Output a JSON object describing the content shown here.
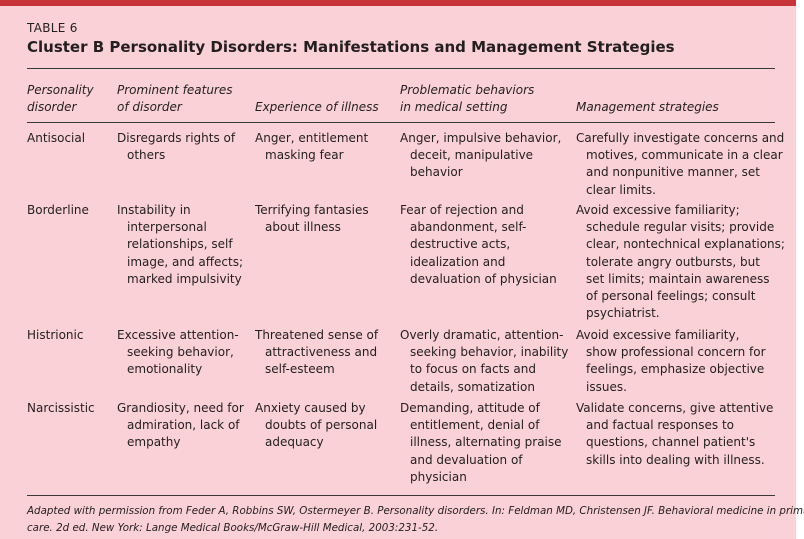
{
  "table": {
    "label": "TABLE 6",
    "title": "Cluster B Personality Disorders: Manifestations and Management Strategies",
    "headers": [
      [
        "Personality",
        "disorder"
      ],
      [
        "Prominent features",
        "of disorder"
      ],
      [
        "Experience of illness"
      ],
      [
        "Problematic behaviors",
        "in medical setting"
      ],
      [
        "Management strategies"
      ]
    ],
    "rows": [
      {
        "disorder": [
          "Antisocial"
        ],
        "features": [
          "Disregards rights of",
          "others"
        ],
        "experience": [
          "Anger, entitlement",
          "masking fear"
        ],
        "behaviors": [
          "Anger, impulsive behavior,",
          "deceit, manipulative",
          "behavior"
        ],
        "management": [
          "Carefully investigate concerns and",
          "motives, communicate in a clear",
          "and nonpunitive manner, set",
          "clear limits."
        ]
      },
      {
        "disorder": [
          "Borderline"
        ],
        "features": [
          "Instability in",
          "interpersonal",
          "relationships, self",
          "image, and affects;",
          "marked impulsivity"
        ],
        "experience": [
          "Terrifying fantasies",
          "about illness"
        ],
        "behaviors": [
          "Fear of rejection and",
          "abandonment, self-",
          "destructive acts,",
          "idealization and",
          "devaluation of physician"
        ],
        "management": [
          "Avoid excessive familiarity;",
          "schedule regular visits; provide",
          "clear, nontechnical explanations;",
          "tolerate angry outbursts, but",
          "set limits; maintain awareness",
          "of personal feelings; consult",
          "psychiatrist."
        ]
      },
      {
        "disorder": [
          "Histrionic"
        ],
        "features": [
          "Excessive attention-",
          "seeking behavior,",
          "emotionality"
        ],
        "experience": [
          "Threatened sense of",
          "attractiveness and",
          "self-esteem"
        ],
        "behaviors": [
          "Overly dramatic, attention-",
          "seeking behavior, inability",
          "to focus on facts and",
          "details, somatization"
        ],
        "management": [
          "Avoid excessive familiarity,",
          "show professional concern for",
          "feelings, emphasize objective",
          "issues."
        ]
      },
      {
        "disorder": [
          "Narcissistic"
        ],
        "features": [
          "Grandiosity, need for",
          "admiration, lack of",
          "empathy"
        ],
        "experience": [
          "Anxiety caused by",
          "doubts of personal",
          "adequacy"
        ],
        "behaviors": [
          "Demanding, attitude of",
          "entitlement, denial of",
          "illness, alternating praise",
          "and devaluation of",
          "physician"
        ],
        "management": [
          "Validate concerns, give attentive",
          "and factual responses to",
          "questions, channel patient's",
          "skills into dealing with illness."
        ]
      }
    ],
    "footnote": [
      "Adapted with permission from Feder A, Robbins SW, Ostermeyer B. Personality disorders. In: Feldman MD, Christensen JF. Behavioral medicine in primary",
      "care. 2d ed. New York: Lange Medical Books/McGraw-Hill Medical, 2003:231-52."
    ]
  },
  "colors": {
    "background": "#f9d1d6",
    "top_bar": "#c8343a",
    "text": "#231f20"
  }
}
